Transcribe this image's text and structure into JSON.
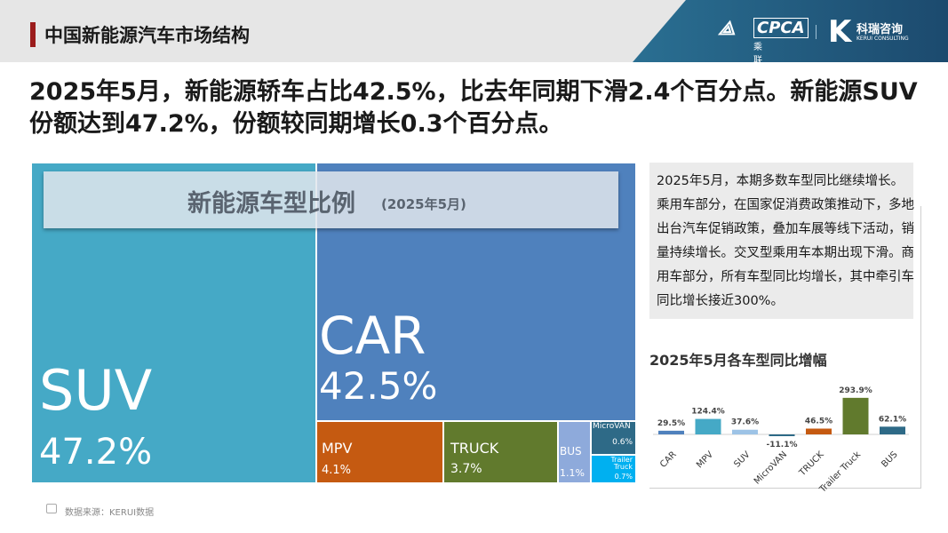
{
  "header": {
    "title": "中国新能源汽车市场结构",
    "logo_cpca": "CPCA",
    "logo_cpca_cn": "乘联分会",
    "logo_kerui_cn": "科瑞咨询",
    "logo_kerui_en": "KERUI CONSULTING"
  },
  "headline": "2025年5月，新能源轿车占比42.5%，比去年同期下滑2.4个百分点。新能源SUV份额达到47.2%，份额较同期增长0.3个百分点。",
  "treemap": {
    "title": "新能源车型比例",
    "subtitle": "(2025年5月)",
    "tiles": [
      {
        "name": "SUV",
        "share": "47.2%",
        "color": "#45a9c6"
      },
      {
        "name": "CAR",
        "share": "42.5%",
        "color": "#4f81bd"
      },
      {
        "name": "MPV",
        "share": "4.1%",
        "color": "#c55a11"
      },
      {
        "name": "TRUCK",
        "share": "3.7%",
        "color": "#617a2d"
      },
      {
        "name": "BUS",
        "share": "1.1%",
        "color": "#8eaadb"
      },
      {
        "name": "MicroVAN",
        "share": "0.6%",
        "color": "#2e6a87"
      },
      {
        "name": "Trailer Truck",
        "share": "0.7%",
        "color": "#00b0f0"
      }
    ]
  },
  "note": "2025年5月，本期多数车型同比继续增长。乘用车部分，在国家促消费政策推动下，多地出台汽车促销政策，叠加车展等线下活动，销量持续增长。交叉型乘用车本期出现下滑。商用车部分，所有车型同比均增长，其中牵引车同比增长接近300%。",
  "chart_data": {
    "type": "bar",
    "title": "2025年5月各车型同比增幅",
    "categories": [
      "CAR",
      "MPV",
      "SUV",
      "MicroVAN",
      "TRUCK",
      "Trailer Truck",
      "BUS"
    ],
    "values": [
      29.5,
      124.4,
      37.6,
      -11.1,
      46.5,
      293.9,
      62.1
    ],
    "labels": [
      "29.5%",
      "124.4%",
      "37.6%",
      "-11.1%",
      "46.5%",
      "293.9%",
      "62.1%"
    ],
    "colors": [
      "#4f81bd",
      "#45a9c6",
      "#9dc3e6",
      "#2e6a87",
      "#c55a11",
      "#617a2d",
      "#2e6a87"
    ],
    "ylabel": "",
    "xlabel": "",
    "grid": false
  },
  "source": "数据来源：KERUI数据"
}
